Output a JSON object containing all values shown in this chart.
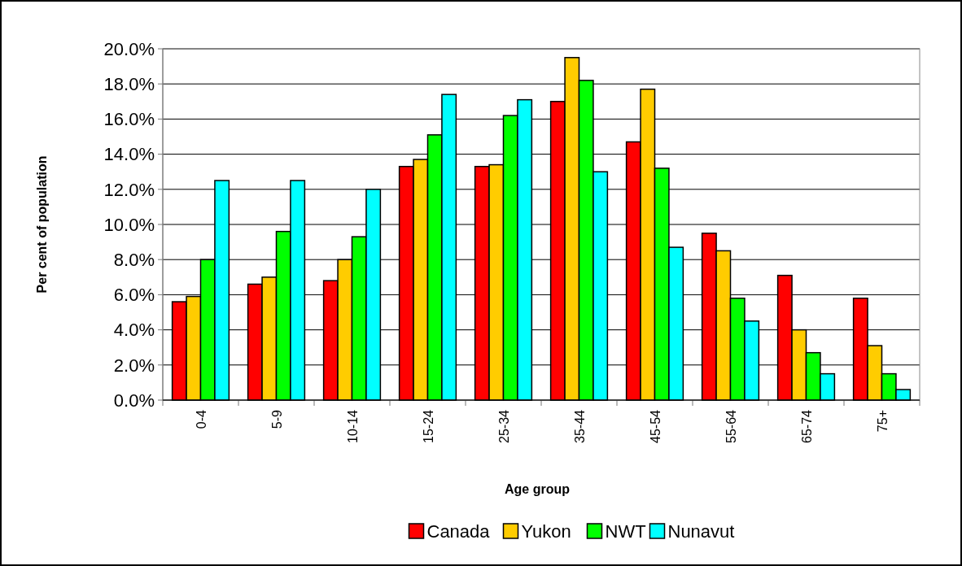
{
  "chart_data": {
    "type": "bar",
    "xlabel": "Age group",
    "ylabel": "Per cent of population",
    "categories": [
      "0-4",
      "5-9",
      "10-14",
      "15-24",
      "25-34",
      "35-44",
      "45-54",
      "55-64",
      "65-74",
      "75+"
    ],
    "series": [
      {
        "name": "Canada",
        "color": "#ff0000",
        "values": [
          5.6,
          6.6,
          6.8,
          13.3,
          13.3,
          17.0,
          14.7,
          9.5,
          7.1,
          5.8
        ]
      },
      {
        "name": "Yukon",
        "color": "#ffcc00",
        "values": [
          5.9,
          7.0,
          8.0,
          13.7,
          13.4,
          19.5,
          17.7,
          8.5,
          4.0,
          3.1
        ]
      },
      {
        "name": "NWT",
        "color": "#00ff00",
        "values": [
          8.0,
          9.6,
          9.3,
          15.1,
          16.2,
          18.2,
          13.2,
          5.8,
          2.7,
          1.5
        ]
      },
      {
        "name": "Nunavut",
        "color": "#00ffff",
        "values": [
          12.5,
          12.5,
          12.0,
          17.4,
          17.1,
          13.0,
          8.7,
          4.5,
          1.5,
          0.6
        ]
      }
    ],
    "ylim": [
      0,
      20
    ],
    "yticks": [
      {
        "value": 0,
        "label": "0.0%"
      },
      {
        "value": 2,
        "label": "2.0%"
      },
      {
        "value": 4,
        "label": "4.0%"
      },
      {
        "value": 6,
        "label": "6.0%"
      },
      {
        "value": 8,
        "label": "8.0%"
      },
      {
        "value": 10,
        "label": "10.0%"
      },
      {
        "value": 12,
        "label": "12.0%"
      },
      {
        "value": 14,
        "label": "14.0%"
      },
      {
        "value": 16,
        "label": "16.0%"
      },
      {
        "value": 18,
        "label": "18.0%"
      },
      {
        "value": 20,
        "label": "20.0%"
      }
    ],
    "grid": "y",
    "legend": "bottom"
  }
}
